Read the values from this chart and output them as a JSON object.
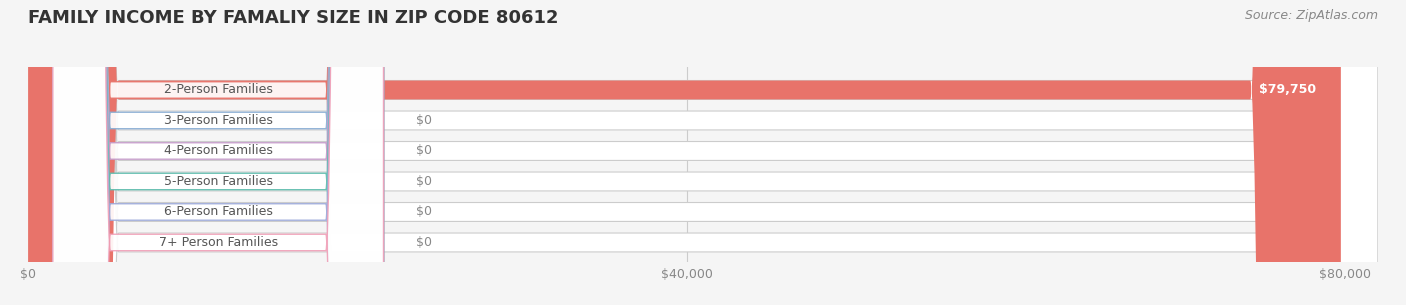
{
  "title": "FAMILY INCOME BY FAMALIY SIZE IN ZIP CODE 80612",
  "source": "Source: ZipAtlas.com",
  "categories": [
    "2-Person Families",
    "3-Person Families",
    "4-Person Families",
    "5-Person Families",
    "6-Person Families",
    "7+ Person Families"
  ],
  "values": [
    79750,
    0,
    0,
    0,
    0,
    0
  ],
  "bar_colors": [
    "#e8736a",
    "#8aaed4",
    "#c49ac9",
    "#5dbcad",
    "#9ba8d9",
    "#f0a0b8"
  ],
  "value_labels": [
    "$79,750",
    "$0",
    "$0",
    "$0",
    "$0",
    "$0"
  ],
  "xlim": [
    0,
    82000
  ],
  "xticks": [
    0,
    40000,
    80000
  ],
  "xticklabels": [
    "$0",
    "$40,000",
    "$80,000"
  ],
  "background_color": "#f5f5f5",
  "title_fontsize": 13,
  "source_fontsize": 9,
  "label_fontsize": 9,
  "value_fontsize": 9
}
